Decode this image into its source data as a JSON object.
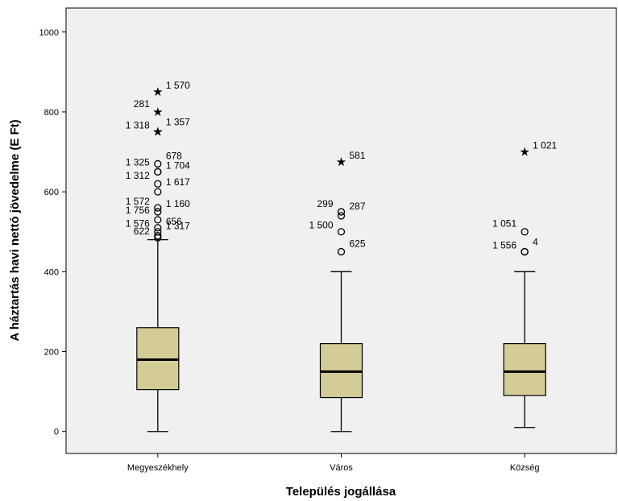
{
  "chart_data": {
    "type": "boxplot",
    "title": "",
    "xlabel": "Település jogállása",
    "ylabel": "A háztartás havi nettó jövedelme (E Ft)",
    "ylim": [
      -55,
      1060
    ],
    "yticks": [
      0,
      200,
      400,
      600,
      800,
      1000
    ],
    "grid": false,
    "colors": {
      "plot_bg": "#f0f0f0",
      "box_fill": "#d4cc96",
      "stroke": "#000000"
    },
    "categories": [
      "Megyeszékhely",
      "Város",
      "Község"
    ],
    "boxes": [
      {
        "category": "Megyeszékhely",
        "whisker_low": 0,
        "q1": 105,
        "median": 180,
        "q3": 260,
        "whisker_high": 480,
        "outliers": [
          {
            "value": 850,
            "marker": "star",
            "label": "1 570"
          },
          {
            "value": 800,
            "marker": "star",
            "label": "281"
          },
          {
            "value": 750,
            "marker": "star",
            "label": "1 357"
          },
          {
            "value": 750,
            "marker": "star",
            "label": "1 318"
          },
          {
            "value": 670,
            "marker": "circle",
            "label": "678"
          },
          {
            "value": 650,
            "marker": "circle",
            "label": "1 325"
          },
          {
            "value": 650,
            "marker": "circle",
            "label": "1 704"
          },
          {
            "value": 620,
            "marker": "circle",
            "label": "1 312"
          },
          {
            "value": 600,
            "marker": "circle",
            "label": "1 617"
          },
          {
            "value": 560,
            "marker": "circle",
            "label": "1 572"
          },
          {
            "value": 550,
            "marker": "circle",
            "label": "1 160"
          },
          {
            "value": 530,
            "marker": "circle",
            "label": "1 756"
          },
          {
            "value": 510,
            "marker": "circle",
            "label": "656"
          },
          {
            "value": 500,
            "marker": "circle",
            "label": "1 576"
          },
          {
            "value": 490,
            "marker": "circle",
            "label": "1 317"
          },
          {
            "value": 485,
            "marker": "circle",
            "label": "622"
          }
        ]
      },
      {
        "category": "Város",
        "whisker_low": 0,
        "q1": 85,
        "median": 150,
        "q3": 220,
        "whisker_high": 400,
        "outliers": [
          {
            "value": 675,
            "marker": "star",
            "label": "581"
          },
          {
            "value": 550,
            "marker": "circle",
            "label": "299"
          },
          {
            "value": 540,
            "marker": "circle",
            "label": "287"
          },
          {
            "value": 500,
            "marker": "circle",
            "label": "1 500"
          },
          {
            "value": 450,
            "marker": "circle",
            "label": "625"
          }
        ]
      },
      {
        "category": "Község",
        "whisker_low": 10,
        "q1": 90,
        "median": 150,
        "q3": 220,
        "whisker_high": 400,
        "outliers": [
          {
            "value": 700,
            "marker": "star",
            "label": "1 021"
          },
          {
            "value": 500,
            "marker": "circle",
            "label": "1 051"
          },
          {
            "value": 450,
            "marker": "circle",
            "label": "4"
          },
          {
            "value": 450,
            "marker": "circle",
            "label": "1 556"
          }
        ]
      }
    ]
  }
}
